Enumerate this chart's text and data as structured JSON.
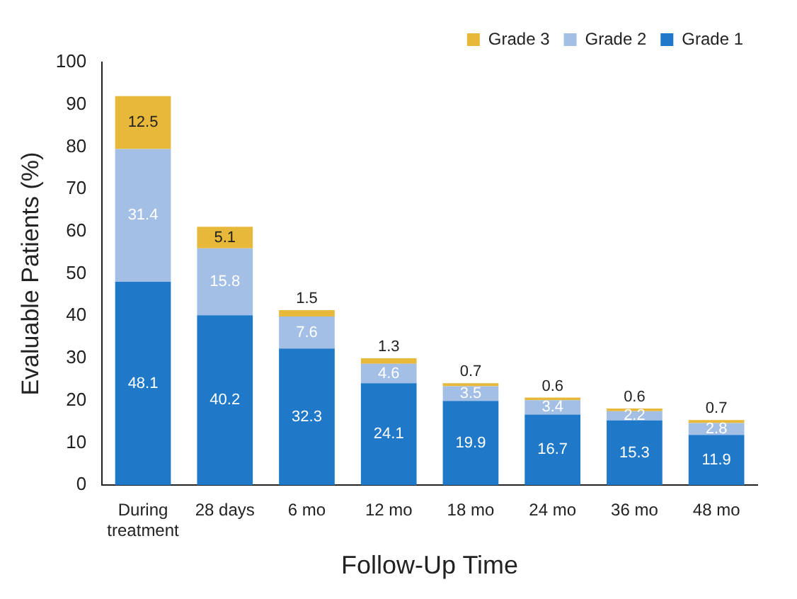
{
  "chart_data": {
    "type": "bar",
    "stacked": true,
    "xlabel": "Follow-Up Time",
    "ylabel": "Evaluable Patients (%)",
    "categories": [
      "During treatment",
      "28 days",
      "6 mo",
      "12 mo",
      "18 mo",
      "24 mo",
      "36 mo",
      "48 mo"
    ],
    "series": [
      {
        "name": "Grade 1",
        "color": "#1f78c8",
        "values": [
          48.1,
          40.2,
          32.3,
          24.1,
          19.9,
          16.7,
          15.3,
          11.9
        ]
      },
      {
        "name": "Grade 2",
        "color": "#a3bfe6",
        "values": [
          31.4,
          15.8,
          7.6,
          4.6,
          3.5,
          3.4,
          2.2,
          2.8
        ]
      },
      {
        "name": "Grade 3",
        "color": "#e8b83a",
        "values": [
          12.5,
          5.1,
          1.5,
          1.3,
          0.7,
          0.6,
          0.6,
          0.7
        ]
      }
    ],
    "ylim": [
      0,
      100
    ],
    "yticks": [
      0,
      10,
      20,
      30,
      40,
      50,
      60,
      70,
      80,
      90,
      100
    ],
    "grid": false,
    "legend": "top right",
    "data_labels": true
  }
}
